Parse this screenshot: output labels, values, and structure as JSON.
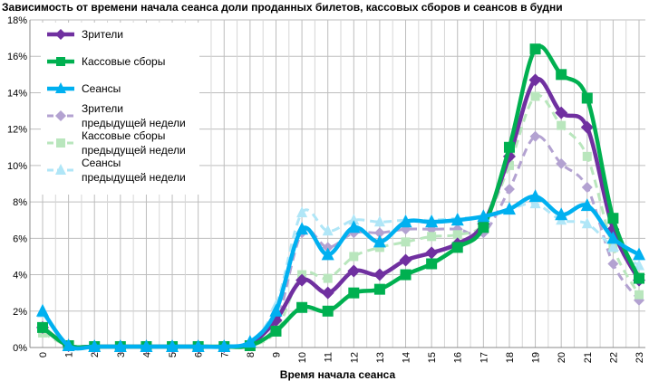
{
  "chart_data": {
    "type": "line",
    "title": "Зависимость от времени начала сеанса доли проданных билетов, кассовых сборов и сеансов в будни",
    "xlabel": "Время начала сеанса",
    "ylabel": "",
    "ylim": [
      0,
      18
    ],
    "yticks": [
      "0%",
      "2%",
      "4%",
      "6%",
      "8%",
      "10%",
      "12%",
      "14%",
      "16%",
      "18%"
    ],
    "x": [
      "0",
      "1",
      "2",
      "3",
      "4",
      "5",
      "6",
      "7",
      "8",
      "9",
      "10",
      "11",
      "12",
      "13",
      "14",
      "15",
      "16",
      "17",
      "18",
      "19",
      "20",
      "21",
      "22",
      "23"
    ],
    "grid": true,
    "legend_position": "top-left",
    "series": [
      {
        "name": "Зрители",
        "name2": "",
        "color": "#7030a0",
        "marker": "diamond",
        "dash": false,
        "values": [
          1.1,
          0.1,
          0.05,
          0.05,
          0.05,
          0.05,
          0.05,
          0.05,
          0.2,
          1.5,
          3.7,
          3.0,
          4.2,
          4.0,
          4.8,
          5.2,
          5.7,
          6.8,
          10.5,
          14.7,
          12.9,
          12.1,
          6.5,
          3.7
        ]
      },
      {
        "name": "Кассовые сборы",
        "name2": "",
        "color": "#00b050",
        "marker": "square",
        "dash": false,
        "values": [
          1.1,
          0.1,
          0.05,
          0.05,
          0.05,
          0.05,
          0.05,
          0.05,
          0.1,
          0.9,
          2.2,
          2.0,
          3.0,
          3.2,
          4.0,
          4.6,
          5.5,
          6.6,
          11.0,
          16.4,
          15.0,
          13.7,
          7.1,
          3.8
        ]
      },
      {
        "name": "Сеансы",
        "name2": "",
        "color": "#00b0f0",
        "marker": "triangle",
        "dash": false,
        "values": [
          2.0,
          0.1,
          0.05,
          0.05,
          0.05,
          0.05,
          0.05,
          0.05,
          0.3,
          2.0,
          6.5,
          5.1,
          6.6,
          5.8,
          6.9,
          6.9,
          7.0,
          7.2,
          7.6,
          8.3,
          7.3,
          7.8,
          6.0,
          5.1
        ]
      },
      {
        "name": "Зрители",
        "name2": "предыдущей недели",
        "color": "#b3a2d1",
        "marker": "diamond",
        "dash": true,
        "values": [
          1.0,
          0.1,
          0.05,
          0.05,
          0.05,
          0.05,
          0.05,
          0.05,
          0.2,
          1.3,
          6.3,
          5.5,
          6.3,
          6.3,
          6.5,
          6.5,
          6.5,
          6.3,
          8.7,
          11.6,
          10.1,
          8.8,
          4.6,
          2.6
        ]
      },
      {
        "name": "Кассовые сборы",
        "name2": "предыдущей недели",
        "color": "#b9e6bd",
        "marker": "square",
        "dash": true,
        "values": [
          0.8,
          0.1,
          0.05,
          0.05,
          0.05,
          0.05,
          0.05,
          0.05,
          0.1,
          0.9,
          4.0,
          3.8,
          5.0,
          5.5,
          5.8,
          6.1,
          6.2,
          6.8,
          10.0,
          13.8,
          12.2,
          10.5,
          5.5,
          2.9
        ]
      },
      {
        "name": "Сеансы",
        "name2": "предыдущей недели",
        "color": "#b0e6f7",
        "marker": "triangle",
        "dash": true,
        "values": [
          1.9,
          0.1,
          0.05,
          0.05,
          0.05,
          0.05,
          0.05,
          0.05,
          0.3,
          2.3,
          7.4,
          6.4,
          7.0,
          6.9,
          7.0,
          7.0,
          7.1,
          7.2,
          7.6,
          7.9,
          7.0,
          6.8,
          5.5,
          4.5
        ]
      }
    ]
  }
}
